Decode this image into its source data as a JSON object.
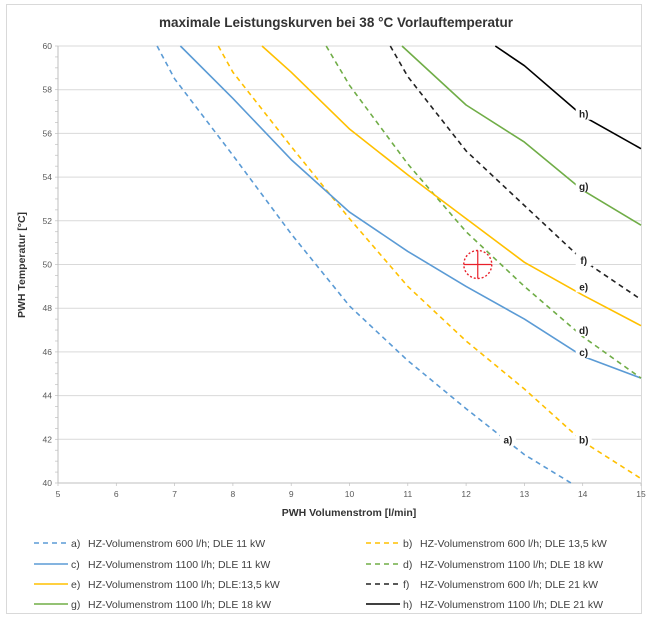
{
  "chart_data": {
    "type": "line",
    "title": "maximale Leistungskurven bei 38 °C Vorlauftemperatur",
    "xlabel": "PWH Volumenstrom [l/min]",
    "ylabel": "PWH Temperatur [°C]",
    "xlim": [
      5,
      15
    ],
    "ylim": [
      40,
      60
    ],
    "x_ticks": [
      "5",
      "6",
      "7",
      "8",
      "9",
      "10",
      "11",
      "12",
      "13",
      "14",
      "15"
    ],
    "y_ticks": [
      "40",
      "42",
      "44",
      "46",
      "48",
      "50",
      "52",
      "54",
      "56",
      "58",
      "60"
    ],
    "grid": "horizontal",
    "legend_position": "bottom",
    "marker": {
      "type": "target",
      "x": 12.2,
      "y": 50,
      "color": "#e8202a"
    },
    "series": [
      {
        "id": "a",
        "label": "a)",
        "name": "HZ-Volumenstrom 600 l/h; DLE 11 kW",
        "color": "#5b9bd5",
        "dash": "dashed",
        "points": [
          [
            6.7,
            60
          ],
          [
            7,
            58.5
          ],
          [
            8,
            55
          ],
          [
            9,
            51.4
          ],
          [
            10,
            48.1
          ],
          [
            11,
            45.6
          ],
          [
            12,
            43.4
          ],
          [
            13,
            41.3
          ],
          [
            13.8,
            40
          ]
        ],
        "label_at": [
          12.7,
          42
        ]
      },
      {
        "id": "b",
        "label": "b)",
        "name": "HZ-Volumenstrom 600 l/h; DLE 13,5 kW",
        "color": "#ffc000",
        "dash": "dashed",
        "points": [
          [
            7.75,
            60
          ],
          [
            8,
            58.8
          ],
          [
            9,
            55.4
          ],
          [
            10,
            52.1
          ],
          [
            11,
            49
          ],
          [
            12,
            46.5
          ],
          [
            13,
            44.3
          ],
          [
            14,
            41.9
          ],
          [
            15,
            40.2
          ]
        ],
        "label_at": [
          14,
          42
        ]
      },
      {
        "id": "c",
        "label": "c)",
        "name": "HZ-Volumenstrom 1100 l/h; DLE 11 kW",
        "color": "#5b9bd5",
        "dash": "solid",
        "points": [
          [
            7.1,
            60
          ],
          [
            8,
            57.6
          ],
          [
            9,
            54.8
          ],
          [
            10,
            52.4
          ],
          [
            11,
            50.6
          ],
          [
            12,
            49
          ],
          [
            13,
            47.5
          ],
          [
            14,
            45.8
          ],
          [
            15,
            44.8
          ]
        ],
        "label_at": [
          14,
          46
        ]
      },
      {
        "id": "d",
        "label": "d)",
        "name": "HZ-Volumenstrom 1100 l/h; DLE 18 kW",
        "color": "#70ad47",
        "dash": "dashed",
        "points": [
          [
            9.6,
            60
          ],
          [
            10,
            58.2
          ],
          [
            11,
            54.6
          ],
          [
            12,
            51.5
          ],
          [
            13,
            49
          ],
          [
            14,
            46.7
          ],
          [
            15,
            44.8
          ]
        ],
        "label_at": [
          14,
          47
        ]
      },
      {
        "id": "e",
        "label": "e)",
        "name": "HZ-Volumenstrom 1100 l/h; DLE:13,5 kW",
        "color": "#ffc000",
        "dash": "solid",
        "points": [
          [
            8.5,
            60
          ],
          [
            9,
            58.8
          ],
          [
            10,
            56.2
          ],
          [
            11,
            54.1
          ],
          [
            12,
            52.1
          ],
          [
            13,
            50.1
          ],
          [
            14,
            48.6
          ],
          [
            15,
            47.2
          ]
        ],
        "label_at": [
          14,
          49
        ]
      },
      {
        "id": "f",
        "label": "f)",
        "name": "HZ-Volumenstrom 600 l/h; DLE 21 kW",
        "color": "#222222",
        "dash": "dashed",
        "points": [
          [
            10.7,
            60
          ],
          [
            11,
            58.6
          ],
          [
            12,
            55.2
          ],
          [
            13,
            52.7
          ],
          [
            14,
            50.2
          ],
          [
            15,
            48.4
          ]
        ],
        "label_at": [
          14,
          50.2
        ]
      },
      {
        "id": "g",
        "label": "g)",
        "name": "HZ-Volumenstrom 1100 l/h; DLE 18 kW",
        "color": "#70ad47",
        "dash": "solid",
        "points": [
          [
            10.9,
            60
          ],
          [
            12,
            57.3
          ],
          [
            13,
            55.6
          ],
          [
            14,
            53.4
          ],
          [
            15,
            51.8
          ]
        ],
        "label_at": [
          14,
          53.6
        ]
      },
      {
        "id": "h",
        "label": "h)",
        "name": "HZ-Volumenstrom 1100 l/h; DLE 21 kW",
        "color": "#000000",
        "dash": "solid",
        "points": [
          [
            12.5,
            60
          ],
          [
            13,
            59.1
          ],
          [
            14,
            56.8
          ],
          [
            15,
            55.3
          ]
        ],
        "label_at": [
          14,
          56.9
        ]
      }
    ],
    "legend": [
      {
        "label": "a)",
        "name": "HZ-Volumenstrom 600 l/h; DLE 11 kW",
        "color": "#5b9bd5",
        "dash": "dashed"
      },
      {
        "label": "b)",
        "name": "HZ-Volumenstrom 600 l/h; DLE 13,5 kW",
        "color": "#ffc000",
        "dash": "dashed"
      },
      {
        "label": "c)",
        "name": "HZ-Volumenstrom 1100 l/h; DLE 11 kW",
        "color": "#5b9bd5",
        "dash": "solid"
      },
      {
        "label": "d)",
        "name": "HZ-Volumenstrom 1100 l/h; DLE 18 kW",
        "color": "#70ad47",
        "dash": "dashed"
      },
      {
        "label": "e)",
        "name": "HZ-Volumenstrom 1100 l/h; DLE:13,5 kW",
        "color": "#ffc000",
        "dash": "solid"
      },
      {
        "label": "f)",
        "name": "HZ-Volumenstrom 600 l/h; DLE 21 kW",
        "color": "#222222",
        "dash": "dashed"
      },
      {
        "label": "g)",
        "name": "HZ-Volumenstrom 1100 l/h; DLE 18 kW",
        "color": "#70ad47",
        "dash": "solid"
      },
      {
        "label": "h)",
        "name": "HZ-Volumenstrom 1100 l/h; DLE 21 kW",
        "color": "#000000",
        "dash": "solid"
      }
    ]
  }
}
